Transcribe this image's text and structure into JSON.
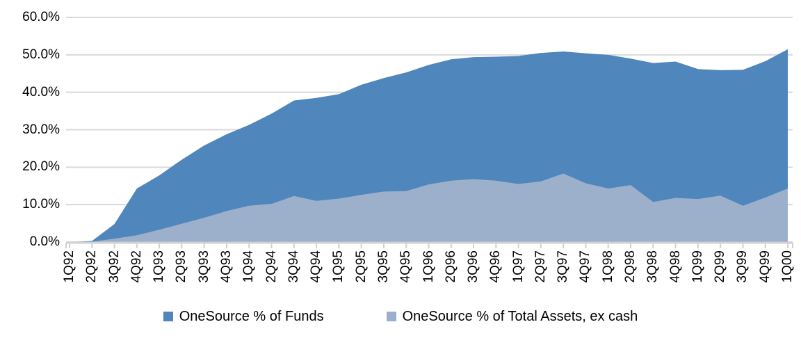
{
  "chart_data": {
    "type": "area",
    "title": "",
    "xlabel": "",
    "ylabel": "",
    "categories": [
      "1Q92",
      "2Q92",
      "3Q92",
      "4Q92",
      "1Q93",
      "2Q93",
      "3Q93",
      "4Q93",
      "1Q94",
      "2Q94",
      "3Q94",
      "4Q94",
      "1Q95",
      "2Q95",
      "3Q95",
      "4Q95",
      "1Q96",
      "2Q96",
      "3Q96",
      "4Q96",
      "1Q97",
      "2Q97",
      "3Q97",
      "4Q97",
      "1Q98",
      "2Q98",
      "3Q98",
      "4Q98",
      "1Q99",
      "2Q99",
      "3Q99",
      "4Q99",
      "1Q00"
    ],
    "series": [
      {
        "name": "OneSource % of Funds",
        "color": "#4f86bb",
        "values": [
          0.0,
          0.3,
          4.8,
          14.3,
          17.8,
          22.0,
          25.8,
          28.8,
          31.3,
          34.3,
          37.8,
          38.5,
          39.5,
          42.0,
          43.8,
          45.3,
          47.3,
          48.8,
          49.4,
          49.5,
          49.7,
          50.5,
          50.9,
          50.4,
          50.0,
          49.0,
          47.8,
          48.2,
          46.2,
          45.9,
          46.0,
          48.3,
          51.5
        ]
      },
      {
        "name": "OneSource % of Total Assets, ex cash",
        "color": "#9cb0cb",
        "values": [
          0.0,
          0.1,
          0.9,
          1.8,
          3.3,
          4.9,
          6.5,
          8.3,
          9.7,
          10.2,
          12.3,
          11.0,
          11.6,
          12.6,
          13.5,
          13.6,
          15.4,
          16.4,
          16.8,
          16.4,
          15.5,
          16.2,
          18.3,
          15.7,
          14.3,
          15.2,
          10.7,
          11.8,
          11.5,
          12.4,
          9.7,
          11.9,
          14.3
        ]
      }
    ],
    "ylim": [
      0,
      60
    ],
    "yticks": [
      0,
      10,
      20,
      30,
      40,
      50,
      60
    ],
    "ytick_labels": [
      "0.0%",
      "10.0%",
      "20.0%",
      "30.0%",
      "40.0%",
      "50.0%",
      "60.0%"
    ],
    "grid": true,
    "gridline_color": "#d9d9d9",
    "axis_color": "#d2d2d2",
    "text_color": "#000000",
    "legend_position": "bottom"
  }
}
